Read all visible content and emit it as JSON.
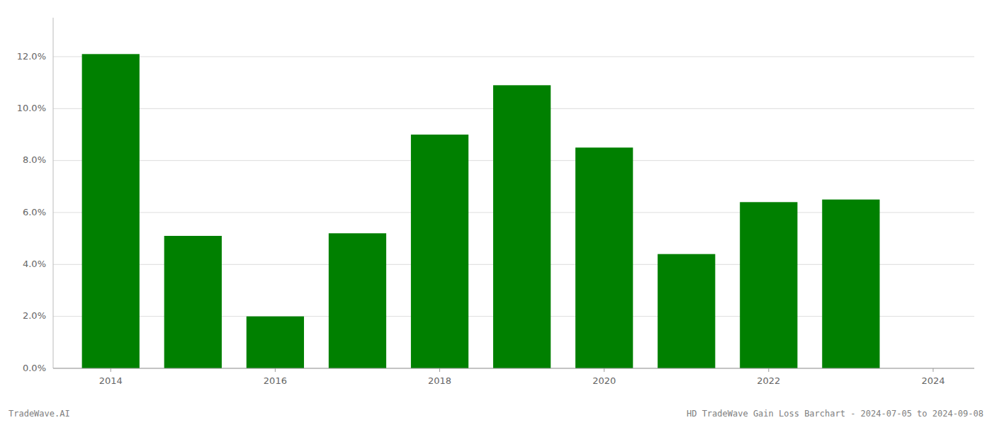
{
  "chart_data": {
    "type": "bar",
    "x": [
      2014,
      2015,
      2016,
      2017,
      2018,
      2019,
      2020,
      2021,
      2022,
      2023
    ],
    "values": [
      0.121,
      0.051,
      0.02,
      0.052,
      0.09,
      0.109,
      0.085,
      0.044,
      0.064,
      0.065
    ],
    "color": "#008000",
    "xlim": [
      2013.3,
      2024.5
    ],
    "xticks": [
      2014,
      2016,
      2018,
      2020,
      2022,
      2024
    ],
    "ylim": [
      0,
      0.135
    ],
    "yticks": [
      {
        "value": 0.0,
        "label": "0.0%"
      },
      {
        "value": 0.02,
        "label": "2.0%"
      },
      {
        "value": 0.04,
        "label": "4.0%"
      },
      {
        "value": 0.06,
        "label": "6.0%"
      },
      {
        "value": 0.08,
        "label": "8.0%"
      },
      {
        "value": 0.1,
        "label": "10.0%"
      },
      {
        "value": 0.12,
        "label": "12.0%"
      }
    ],
    "grid": true,
    "annotations": [
      "TradeWave.AI",
      "HD TradeWave Gain Loss Barchart - 2024-07-05 to 2024-09-08"
    ]
  }
}
